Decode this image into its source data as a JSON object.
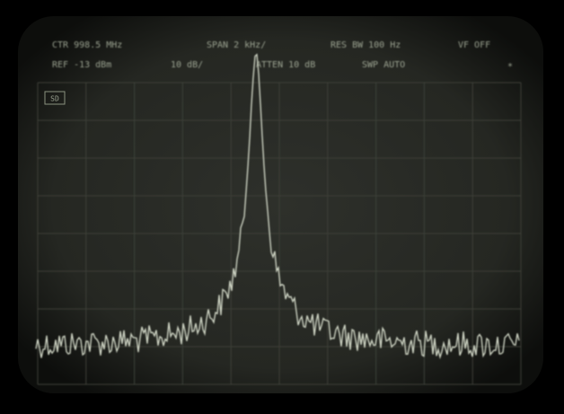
{
  "header": {
    "row1": [
      "CTR  998.5 MHz",
      "SPAN 2 kHz/",
      "RES BW 100 Hz",
      "VF OFF"
    ],
    "row2": [
      "REF -13 dBm",
      "10 dB/",
      "ATTEN 10 dB",
      "SWP  AUTO",
      "*"
    ]
  },
  "marker_box": "SD"
}
